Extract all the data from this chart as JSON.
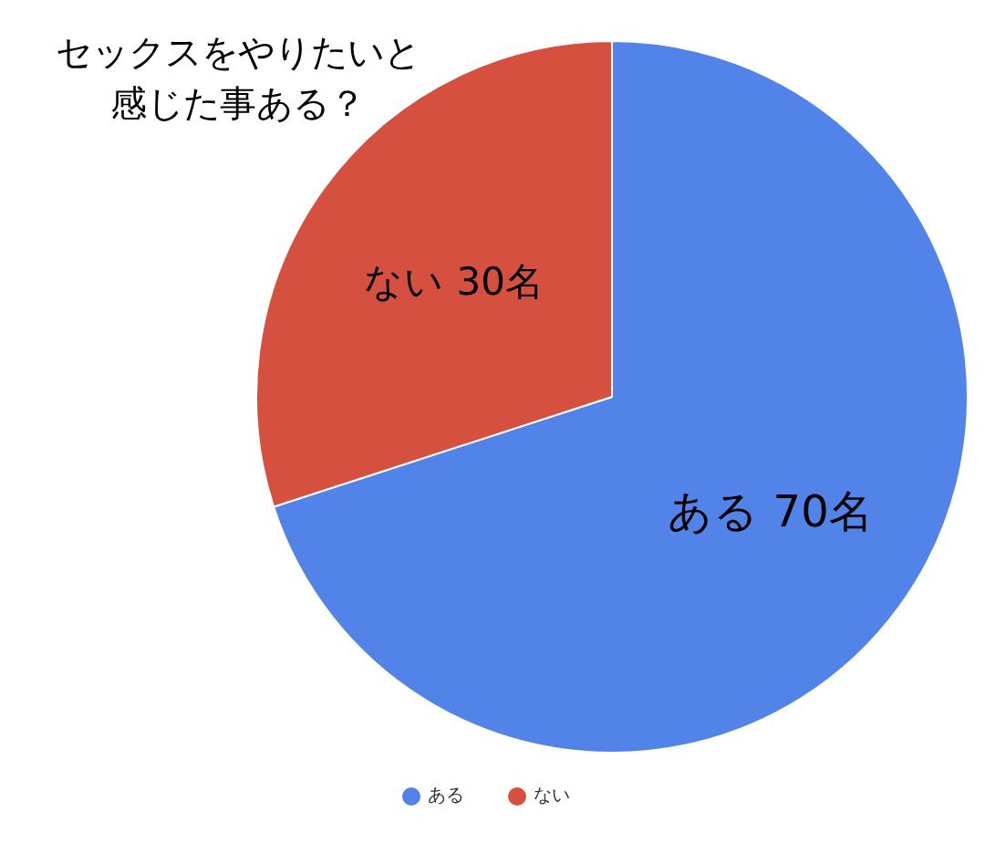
{
  "chart_data": {
    "type": "pie",
    "title": "セックスをやりたいと感じた事ある？",
    "categories": [
      "ある",
      "ない"
    ],
    "values": [
      70,
      30
    ],
    "colors": [
      "#5183e8",
      "#d6503f"
    ],
    "value_labels": [
      "ある 70名",
      "ない 30名"
    ],
    "legend": "bottom"
  }
}
